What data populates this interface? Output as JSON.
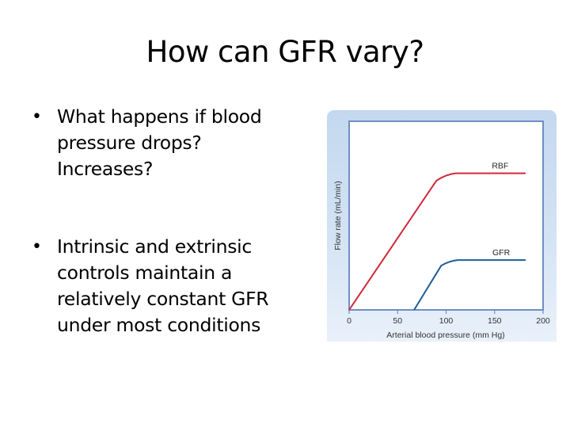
{
  "slide": {
    "title": "How can GFR vary?",
    "bullets": [
      {
        "lines": [
          "What happens if blood",
          "pressure drops?",
          "Increases?"
        ]
      },
      {
        "lines": [
          "Intrinsic and extrinsic",
          "controls maintain a",
          "relatively constant GFR",
          "under most conditions"
        ]
      }
    ],
    "bullet_glyph": "•"
  },
  "colors": {
    "rbf": "#d0283a",
    "gfr": "#1d5d99",
    "frame": "#6f8fc4",
    "panel_top": "#c3d8ef",
    "panel_bottom": "#e9f1fa"
  },
  "chart_data": {
    "type": "line",
    "title": "",
    "xlabel": "Arterial blood pressure (mm Hg)",
    "ylabel": "Flow rate (mL/min)",
    "xlim": [
      0,
      200
    ],
    "x_ticks": [
      0,
      50,
      100,
      150,
      200
    ],
    "ylim": [
      0,
      1
    ],
    "y_ticks": [],
    "grid": false,
    "legend": "inline labels above curves",
    "series": [
      {
        "name": "RBF",
        "color": "#d0283a",
        "points": [
          [
            0,
            0
          ],
          [
            90,
            0.7
          ],
          [
            100,
            0.735
          ],
          [
            110,
            0.74
          ],
          [
            182,
            0.74
          ]
        ]
      },
      {
        "name": "GFR",
        "color": "#1d5d99",
        "points": [
          [
            67,
            0
          ],
          [
            95,
            0.24
          ],
          [
            103,
            0.265
          ],
          [
            112,
            0.27
          ],
          [
            182,
            0.27
          ]
        ]
      }
    ]
  }
}
